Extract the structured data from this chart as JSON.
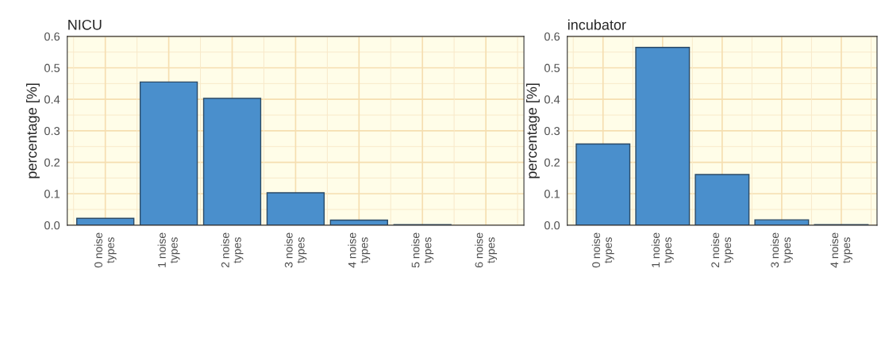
{
  "chart_data": [
    {
      "type": "bar",
      "title": "NICU",
      "ylabel": "percentage [%]",
      "categories": [
        "0 noise\ntypes",
        "1 noise\ntypes",
        "2 noise\ntypes",
        "3 noise\ntypes",
        "4 noise\ntypes",
        "5 noise\ntypes",
        "6 noise\ntypes"
      ],
      "values": [
        0.022,
        0.455,
        0.403,
        0.103,
        0.016,
        0.002,
        null
      ],
      "color": "#4a8fcc",
      "ylim": [
        0,
        0.6
      ],
      "yticks": [
        {
          "value": 0,
          "label": "0.0"
        },
        0.1,
        0.2,
        0.3,
        0.4,
        0.5,
        0.6
      ],
      "grid": true
    },
    {
      "type": "bar",
      "title": "incubator",
      "ylabel": "percentage [%]",
      "categories": [
        "0 noise\ntypes",
        "1 noise\ntypes",
        "2 noise\ntypes",
        "3 noise\ntypes",
        "4 noise\ntypes"
      ],
      "values": [
        0.258,
        0.565,
        0.161,
        0.017,
        0.002
      ],
      "color": "#4a8fcc",
      "ylim": [
        0,
        0.6
      ],
      "yticks": [
        {
          "value": 0,
          "label": "0.0"
        },
        0.1,
        0.2,
        0.3,
        0.4,
        0.5,
        0.6
      ],
      "grid": true
    }
  ]
}
